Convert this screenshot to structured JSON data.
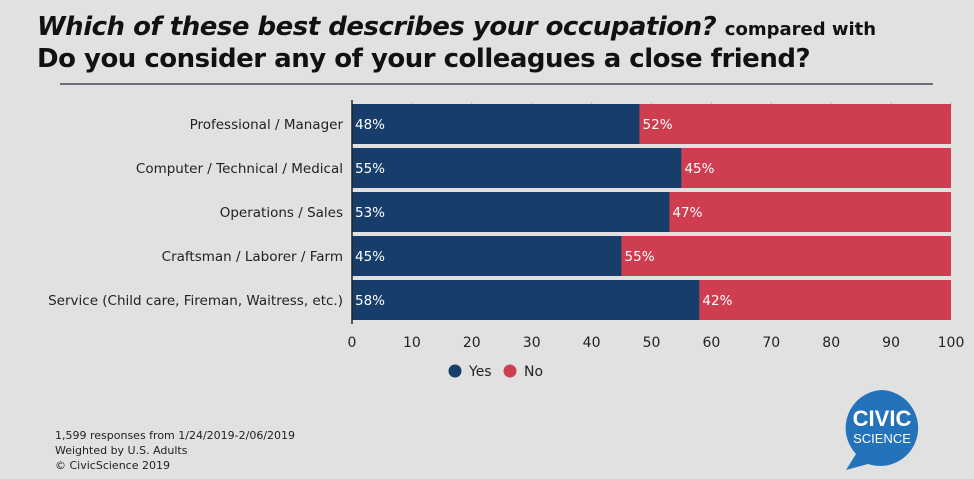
{
  "title": {
    "question1": "Which of these best describes your occupation?",
    "connector": "compared with",
    "question2": "Do you consider any of your colleagues a close friend?"
  },
  "chart_data": {
    "type": "bar",
    "orientation": "horizontal-stacked",
    "categories": [
      "Professional / Manager",
      "Computer / Technical / Medical",
      "Operations / Sales",
      "Craftsman / Laborer / Farm",
      "Service (Child care, Fireman, Waitress, etc.)"
    ],
    "series": [
      {
        "name": "Yes",
        "color": "#173d6b",
        "values": [
          48,
          55,
          53,
          45,
          58
        ]
      },
      {
        "name": "No",
        "color": "#cf3d50",
        "values": [
          52,
          45,
          47,
          55,
          42
        ]
      }
    ],
    "xlim": [
      0,
      100
    ],
    "xticks": [
      0,
      10,
      20,
      30,
      40,
      50,
      60,
      70,
      80,
      90,
      100
    ],
    "legend": "bottom"
  },
  "footer": {
    "line1": "1,599 responses from 1/24/2019-2/06/2019",
    "line2": "Weighted by U.S. Adults",
    "line3": "© CivicScience 2019"
  },
  "logo": {
    "line1": "CIVIC",
    "line2": "SCIENCE",
    "color": "#2473ba"
  }
}
